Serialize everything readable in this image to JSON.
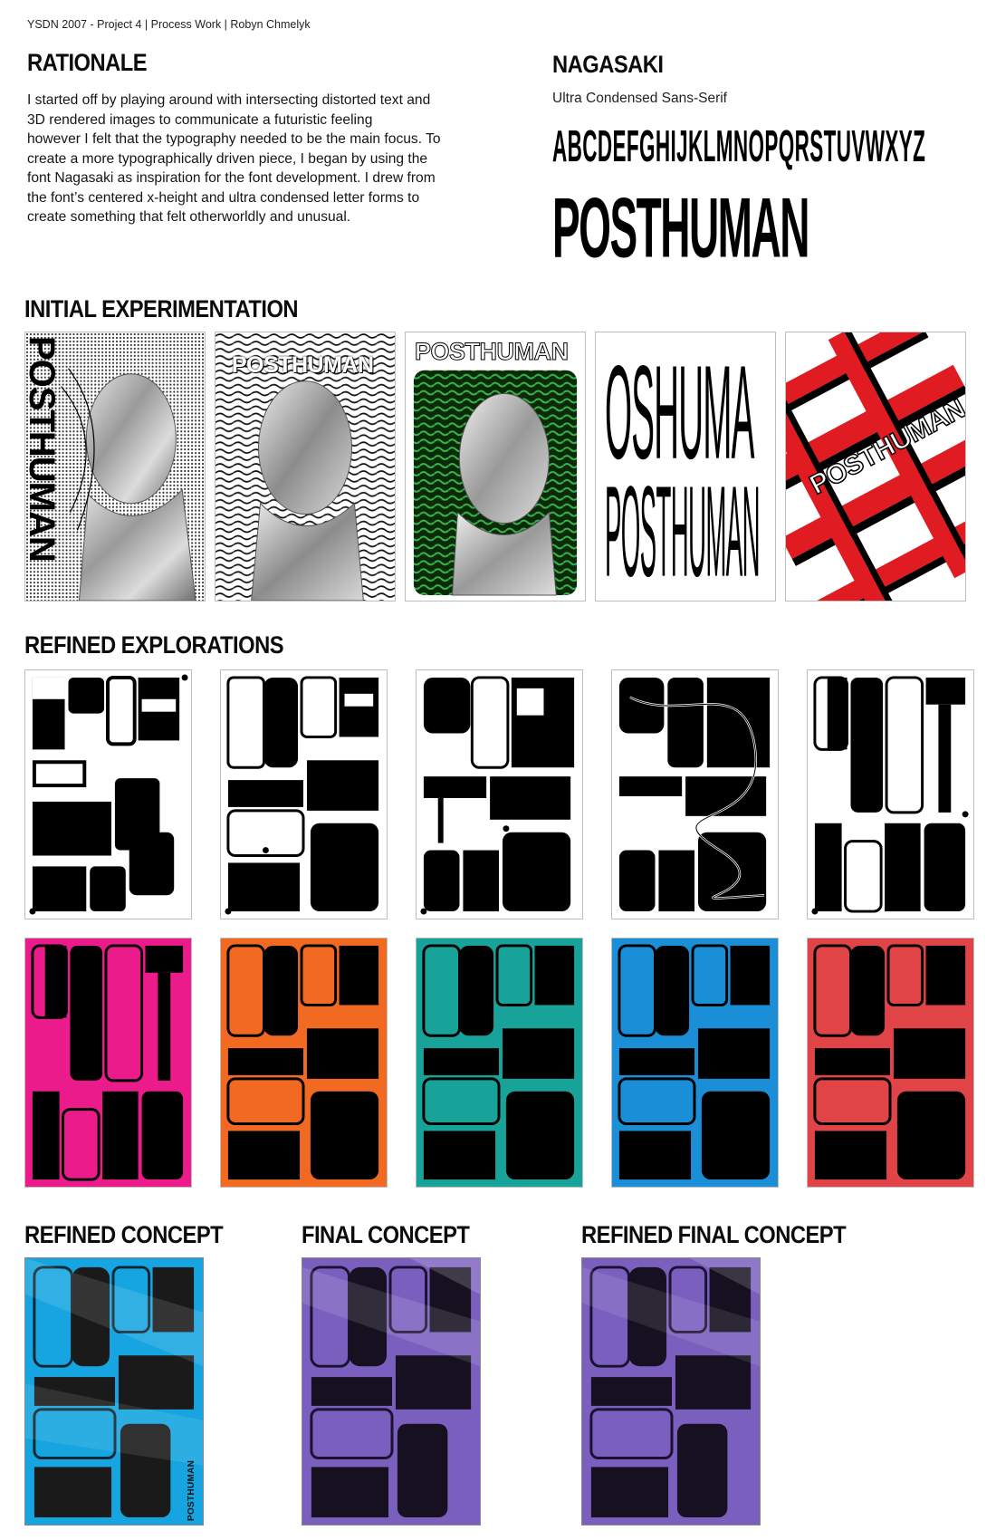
{
  "header": {
    "text": "YSDN 2007 - Project 4 | Process Work | Robyn Chmelyk"
  },
  "rationale": {
    "title": "RATIONALE",
    "lines": [
      "I started off by playing around with intersecting distorted text and",
      "3D rendered images to communicate a futuristic feeling",
      "however I felt that the typography needed to be the main focus. To",
      "create a more typographically driven piece, I began by using the",
      "font Nagasaki as inspiration for the font development. I drew from",
      "the font’s centered x-height and ultra condensed letter forms to",
      "create something that felt otherworldly and unusual."
    ]
  },
  "font_sample": {
    "title": "NAGASAKI",
    "subtitle": "Ultra Condensed Sans-Serif",
    "alphabet": "ABCDEFGHIJKLMNOPQRSTUVWXYZ",
    "display_word": "POSTHUMAN"
  },
  "sections": {
    "initial": "INITIAL EXPERIMENTATION",
    "refined_explorations": "REFINED EXPLORATIONS",
    "refined_concept": "REFINED CONCEPT",
    "final_concept": "FINAL CONCEPT",
    "refined_final_concept": "REFINED FINAL CONCEPT"
  },
  "initial_posters": {
    "p1_vertical": "POSTHUMAN",
    "p2_word": "POSTHUMAN",
    "p3_word": "POSTHUMAN",
    "p4_top": "OSHUMA",
    "p4_bottom": "POSTHUMAN",
    "p5_word": "POSTHUMAN"
  },
  "concept_tag": "POSTHUMAN",
  "colors": {
    "magenta": "#ec1b8c",
    "orange": "#f26a22",
    "teal": "#17a39a",
    "blue": "#1a8ed6",
    "red": "#e04446",
    "cyan": "#16a5e0",
    "violet": "#7a5fbf",
    "green": "#3ab54a",
    "crimson": "#e01b22"
  }
}
